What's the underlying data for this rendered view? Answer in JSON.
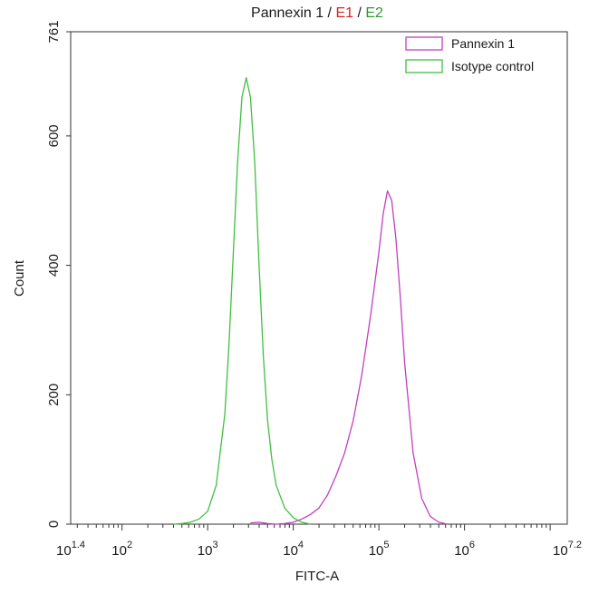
{
  "chart_data": {
    "type": "area",
    "title_parts": [
      {
        "text": "Pannexin 1",
        "color": "#1a1a1a"
      },
      {
        "text": " / ",
        "color": "#1a1a1a"
      },
      {
        "text": "E1",
        "color": "#d62020"
      },
      {
        "text": " / ",
        "color": "#1a1a1a"
      },
      {
        "text": "E2",
        "color": "#2a9a2a"
      }
    ],
    "xlabel": "FITC-A",
    "ylabel": "Count",
    "x_scale": "log",
    "xlim": [
      25.12,
      15848932
    ],
    "ylim": [
      0,
      761
    ],
    "x_ticks": [
      {
        "value": 25.12,
        "base": "10",
        "exp": "1.4"
      },
      {
        "value": 100,
        "base": "10",
        "exp": "2"
      },
      {
        "value": 1000,
        "base": "10",
        "exp": "3"
      },
      {
        "value": 10000,
        "base": "10",
        "exp": "4"
      },
      {
        "value": 100000,
        "base": "10",
        "exp": "5"
      },
      {
        "value": 1000000,
        "base": "10",
        "exp": "6"
      },
      {
        "value": 15848932,
        "base": "10",
        "exp": "7.2"
      }
    ],
    "y_ticks": [
      0,
      200,
      400,
      600,
      761
    ],
    "legend_position": "top-right",
    "series": [
      {
        "name": "Pannexin 1",
        "color": "#c040c0",
        "x": [
          3162,
          3981,
          5012,
          6310,
          7943,
          10000,
          12589,
          15849,
          19953,
          25119,
          31623,
          39811,
          50119,
          63096,
          79433,
          100000,
          112202,
          125893,
          141254,
          158489,
          177828,
          199526,
          251189,
          316228,
          398107,
          501187,
          630957
        ],
        "y": [
          2,
          3,
          1,
          0,
          1,
          3,
          8,
          15,
          25,
          45,
          75,
          110,
          160,
          230,
          320,
          420,
          480,
          515,
          500,
          440,
          350,
          250,
          110,
          40,
          12,
          3,
          0
        ]
      },
      {
        "name": "Isotype control",
        "color": "#40c040",
        "x": [
          398,
          501,
          631,
          794,
          1000,
          1259,
          1585,
          1778,
          1995,
          2239,
          2512,
          2818,
          3162,
          3548,
          3981,
          4467,
          5012,
          5623,
          6310,
          7943,
          10000,
          12589,
          15849
        ],
        "y": [
          0,
          1,
          3,
          8,
          20,
          60,
          170,
          280,
          420,
          560,
          660,
          690,
          660,
          560,
          400,
          260,
          160,
          100,
          60,
          25,
          10,
          3,
          0
        ]
      }
    ]
  }
}
